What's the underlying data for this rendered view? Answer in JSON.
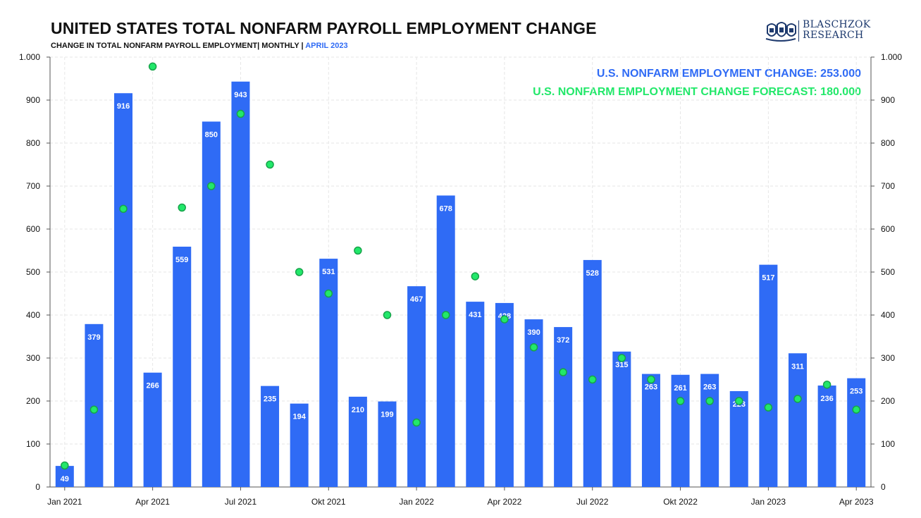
{
  "header": {
    "title": "UNITED STATES TOTAL NONFARM PAYROLL EMPLOYMENT CHANGE",
    "subtitle_main": "CHANGE IN TOTAL NONFARM PAYROLL EMPLOYMENT| MONTHLY | ",
    "subtitle_date": "APRIL 2023"
  },
  "logo": {
    "line1": "BLASCHZOK",
    "line2": "RESEARCH",
    "icon": "shield-crest-icon",
    "color": "#1e3a6e"
  },
  "legend": {
    "actual": "U.S. NONFARM EMPLOYMENT CHANGE: 253.000",
    "forecast": "U.S. NONFARM EMPLOYMENT CHANGE FORECAST: 180.000"
  },
  "colors": {
    "bar": "#2f6bf5",
    "forecast_dot": "#22e86a",
    "forecast_dot_stroke": "#17a34a",
    "grid": "#e6e6e6",
    "text": "#111111"
  },
  "chart_data": {
    "type": "bar",
    "categories": [
      "Jan 2021",
      "Feb 2021",
      "Mar 2021",
      "Apr 2021",
      "May 2021",
      "Jun 2021",
      "Jul 2021",
      "Aug 2021",
      "Sep 2021",
      "Okt 2021",
      "Nov 2021",
      "Dec 2021",
      "Jan 2022",
      "Feb 2022",
      "Mar 2022",
      "Apr 2022",
      "May 2022",
      "Jun 2022",
      "Jul 2022",
      "Aug 2022",
      "Sep 2022",
      "Okt 2022",
      "Nov 2022",
      "Dec 2022",
      "Jan 2023",
      "Feb 2023",
      "Mar 2023",
      "Apr 2023"
    ],
    "x_tick_labels": [
      "Jan 2021",
      "Apr 2021",
      "Jul 2021",
      "Okt 2021",
      "Jan 2022",
      "Apr 2022",
      "Jul 2022",
      "Okt 2022",
      "Jan 2023",
      "Apr 2023"
    ],
    "x_tick_every": 3,
    "series": [
      {
        "type": "bar",
        "values": [
          49,
          379,
          916,
          266,
          559,
          850,
          943,
          235,
          194,
          531,
          210,
          199,
          467,
          678,
          431,
          428,
          390,
          372,
          528,
          315,
          263,
          261,
          263,
          223,
          517,
          311,
          236,
          253
        ]
      },
      {
        "type": "scatter",
        "values": [
          50,
          180,
          647,
          978,
          650,
          700,
          868,
          750,
          500,
          450,
          550,
          400,
          150,
          400,
          490,
          390,
          325,
          267,
          250,
          300,
          250,
          200,
          200,
          200,
          185,
          205,
          238,
          180
        ]
      }
    ],
    "ylim": [
      0,
      1000
    ],
    "yticks": [
      0,
      100,
      200,
      300,
      400,
      500,
      600,
      700,
      800,
      900,
      1000
    ],
    "ytick_labels": [
      "0",
      "100",
      "200",
      "300",
      "400",
      "500",
      "600",
      "700",
      "800",
      "900",
      "1.000"
    ],
    "grid": true,
    "dual_y_axis": true,
    "legend_position": "top-right"
  }
}
